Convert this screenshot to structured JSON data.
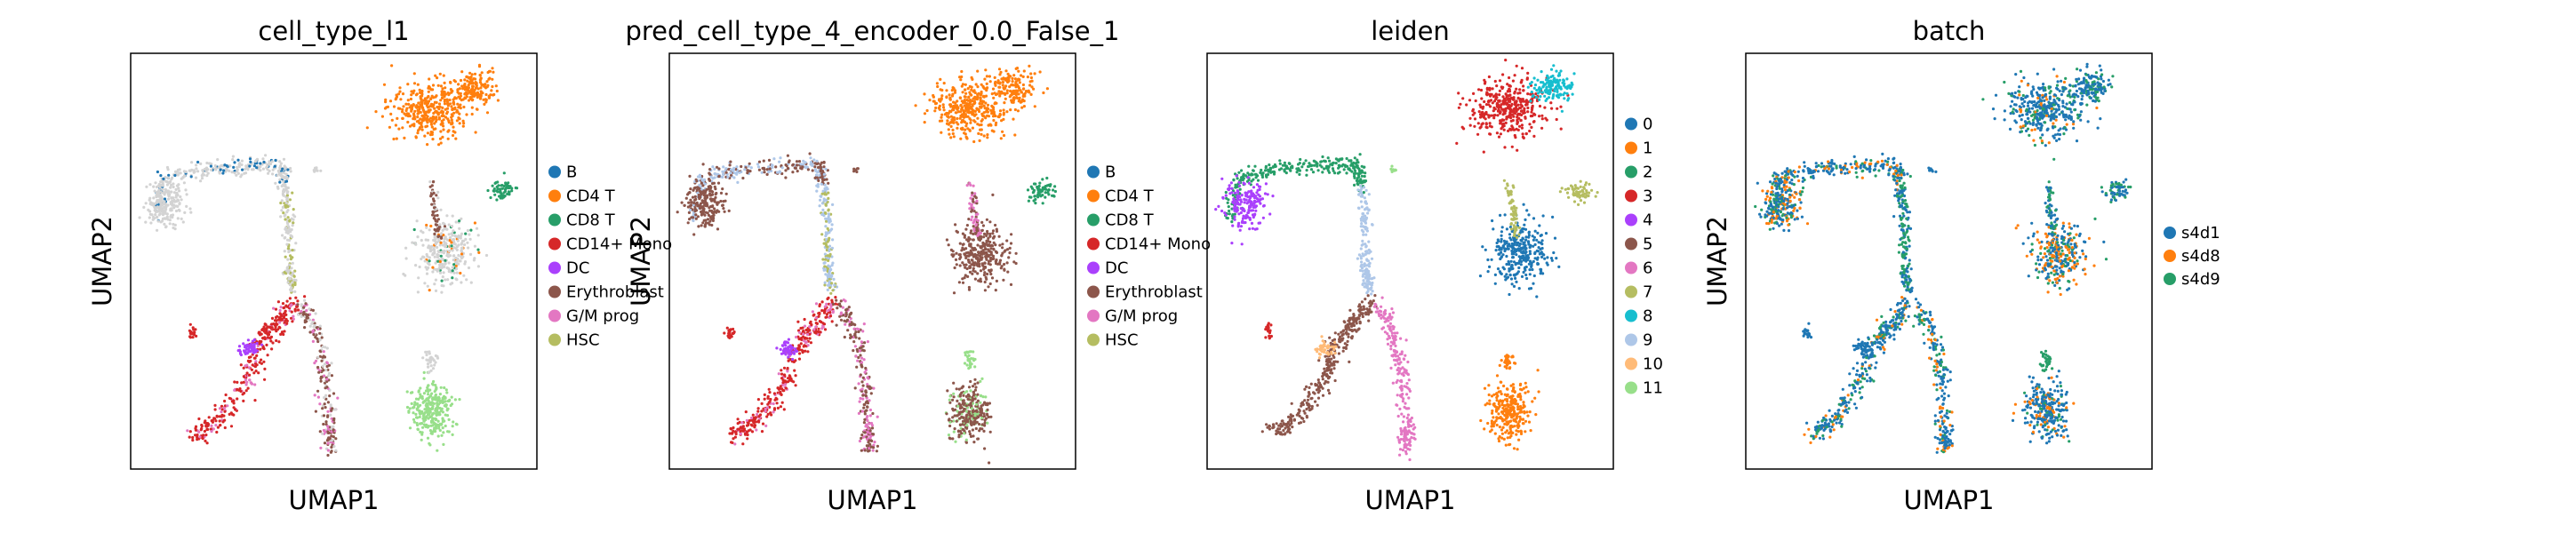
{
  "chart_data": [
    {
      "type": "scatter",
      "title": "cell_type_l1",
      "xlabel": "UMAP1",
      "ylabel": "UMAP2",
      "grid": false,
      "legend_placement": "right",
      "categories": [
        "B",
        "CD4 T",
        "CD8 T",
        "CD14+ Mono",
        "DC",
        "Erythroblast",
        "G/M prog",
        "HSC"
      ],
      "colors": [
        "#1f77b4",
        "#ff7f0e",
        "#279e68",
        "#d62728",
        "#aa40fc",
        "#8c564b",
        "#e377c2",
        "#b5bd61"
      ],
      "unlabeled_color": "#d3d3d3"
    },
    {
      "type": "scatter",
      "title": "pred_cell_type_4_encoder_0.0_False_1",
      "xlabel": "UMAP1",
      "ylabel": "UMAP2",
      "grid": false,
      "legend_placement": "right",
      "categories": [
        "B",
        "CD4 T",
        "CD8 T",
        "CD14+ Mono",
        "DC",
        "Erythroblast",
        "G/M prog",
        "HSC"
      ],
      "colors": [
        "#1f77b4",
        "#ff7f0e",
        "#279e68",
        "#d62728",
        "#aa40fc",
        "#8c564b",
        "#e377c2",
        "#b5bd61"
      ]
    },
    {
      "type": "scatter",
      "title": "leiden",
      "xlabel": "UMAP1",
      "ylabel": "",
      "grid": false,
      "legend_placement": "right",
      "categories": [
        "0",
        "1",
        "2",
        "3",
        "4",
        "5",
        "6",
        "7",
        "8",
        "9",
        "10",
        "11"
      ],
      "colors": [
        "#1f77b4",
        "#ff7f0e",
        "#279e68",
        "#d62728",
        "#aa40fc",
        "#8c564b",
        "#e377c2",
        "#b5bd61",
        "#17becf",
        "#aec7e8",
        "#ffbb78",
        "#98df8a"
      ]
    },
    {
      "type": "scatter",
      "title": "batch",
      "xlabel": "UMAP1",
      "ylabel": "UMAP2",
      "grid": false,
      "legend_placement": "right",
      "categories": [
        "s4d1",
        "s4d8",
        "s4d9"
      ],
      "colors": [
        "#1f77b4",
        "#ff7f0e",
        "#279e68"
      ]
    }
  ]
}
